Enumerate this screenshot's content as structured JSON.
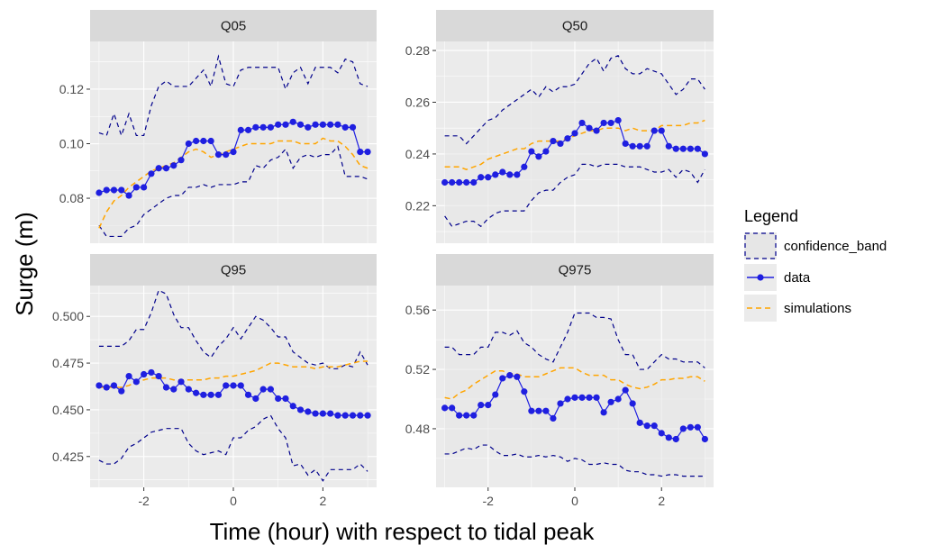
{
  "chart_data": {
    "type": "line",
    "xlabel": "Time (hour) with respect to tidal peak",
    "ylabel": "Surge (m)",
    "legend": {
      "title": "Legend",
      "position": "right",
      "entries": [
        "confidence_band",
        "data",
        "simulations"
      ]
    },
    "colors": {
      "confidence_band": "#00008b",
      "data": "#1f1fe0",
      "simulations": "#ffa500",
      "panel_bg": "#ebebeb",
      "strip_bg": "#d9d9d9",
      "grid": "#ffffff"
    },
    "grid": true,
    "x_ticks": [
      -2,
      0,
      2
    ],
    "x_tick_labels": [
      "-2",
      "0",
      "2"
    ],
    "xlim": [
      -3.2,
      3.2
    ],
    "panels": [
      {
        "title": "Q05",
        "ylim": [
          0.0635,
          0.1375
        ],
        "y_ticks": [
          0.08,
          0.1,
          0.12
        ],
        "y_tick_labels": [
          "0.08",
          "0.10",
          "0.12"
        ],
        "x": [
          -3.0,
          -2.833,
          -2.667,
          -2.5,
          -2.333,
          -2.167,
          -2.0,
          -1.833,
          -1.667,
          -1.5,
          -1.333,
          -1.167,
          -1.0,
          -0.833,
          -0.667,
          -0.5,
          -0.333,
          -0.167,
          0.0,
          0.167,
          0.333,
          0.5,
          0.667,
          0.833,
          1.0,
          1.167,
          1.333,
          1.5,
          1.667,
          1.833,
          2.0,
          2.167,
          2.333,
          2.5,
          2.667,
          2.833,
          3.0
        ],
        "series": [
          {
            "name": "data",
            "values": [
              0.082,
              0.083,
              0.083,
              0.083,
              0.081,
              0.084,
              0.084,
              0.089,
              0.091,
              0.091,
              0.092,
              0.094,
              0.1,
              0.101,
              0.101,
              0.101,
              0.096,
              0.096,
              0.097,
              0.105,
              0.105,
              0.106,
              0.106,
              0.106,
              0.107,
              0.107,
              0.108,
              0.107,
              0.106,
              0.107,
              0.107,
              0.107,
              0.107,
              0.106,
              0.106,
              0.097,
              0.097
            ]
          },
          {
            "name": "simulations",
            "values": [
              0.069,
              0.075,
              0.079,
              0.081,
              0.084,
              0.086,
              0.088,
              0.09,
              0.091,
              0.092,
              0.093,
              0.095,
              0.097,
              0.098,
              0.097,
              0.095,
              0.096,
              0.097,
              0.098,
              0.099,
              0.1,
              0.1,
              0.1,
              0.1,
              0.101,
              0.101,
              0.101,
              0.1,
              0.1,
              0.1,
              0.102,
              0.101,
              0.101,
              0.099,
              0.096,
              0.092,
              0.091
            ]
          },
          {
            "name": "upper",
            "values": [
              0.104,
              0.103,
              0.111,
              0.103,
              0.111,
              0.103,
              0.103,
              0.114,
              0.121,
              0.123,
              0.121,
              0.121,
              0.121,
              0.124,
              0.127,
              0.121,
              0.132,
              0.122,
              0.121,
              0.127,
              0.128,
              0.128,
              0.128,
              0.128,
              0.128,
              0.12,
              0.126,
              0.128,
              0.122,
              0.128,
              0.128,
              0.128,
              0.126,
              0.131,
              0.13,
              0.122,
              0.121
            ]
          },
          {
            "name": "lower",
            "values": [
              0.07,
              0.066,
              0.066,
              0.066,
              0.069,
              0.07,
              0.074,
              0.076,
              0.078,
              0.08,
              0.081,
              0.081,
              0.084,
              0.084,
              0.085,
              0.084,
              0.085,
              0.085,
              0.085,
              0.086,
              0.086,
              0.092,
              0.091,
              0.094,
              0.095,
              0.098,
              0.091,
              0.095,
              0.096,
              0.095,
              0.096,
              0.096,
              0.099,
              0.088,
              0.088,
              0.088,
              0.087
            ]
          }
        ]
      },
      {
        "title": "Q50",
        "ylim": [
          0.2055,
          0.2835
        ],
        "y_ticks": [
          0.22,
          0.24,
          0.26,
          0.28
        ],
        "y_tick_labels": [
          "0.22",
          "0.24",
          "0.26",
          "0.28"
        ],
        "x": [
          -3.0,
          -2.833,
          -2.667,
          -2.5,
          -2.333,
          -2.167,
          -2.0,
          -1.833,
          -1.667,
          -1.5,
          -1.333,
          -1.167,
          -1.0,
          -0.833,
          -0.667,
          -0.5,
          -0.333,
          -0.167,
          0.0,
          0.167,
          0.333,
          0.5,
          0.667,
          0.833,
          1.0,
          1.167,
          1.333,
          1.5,
          1.667,
          1.833,
          2.0,
          2.167,
          2.333,
          2.5,
          2.667,
          2.833,
          3.0
        ],
        "series": [
          {
            "name": "data",
            "values": [
              0.229,
              0.229,
              0.229,
              0.229,
              0.229,
              0.231,
              0.231,
              0.232,
              0.233,
              0.232,
              0.232,
              0.235,
              0.241,
              0.239,
              0.241,
              0.245,
              0.244,
              0.246,
              0.248,
              0.252,
              0.25,
              0.249,
              0.252,
              0.252,
              0.253,
              0.244,
              0.243,
              0.243,
              0.243,
              0.249,
              0.249,
              0.243,
              0.242,
              0.242,
              0.242,
              0.242,
              0.24
            ]
          },
          {
            "name": "simulations",
            "values": [
              0.235,
              0.235,
              0.235,
              0.234,
              0.235,
              0.236,
              0.238,
              0.239,
              0.24,
              0.241,
              0.242,
              0.242,
              0.244,
              0.245,
              0.245,
              0.245,
              0.245,
              0.246,
              0.247,
              0.248,
              0.249,
              0.249,
              0.25,
              0.25,
              0.25,
              0.249,
              0.25,
              0.249,
              0.249,
              0.249,
              0.251,
              0.251,
              0.251,
              0.251,
              0.252,
              0.252,
              0.253
            ]
          },
          {
            "name": "upper",
            "values": [
              0.247,
              0.247,
              0.247,
              0.244,
              0.247,
              0.25,
              0.253,
              0.254,
              0.257,
              0.259,
              0.261,
              0.263,
              0.265,
              0.262,
              0.266,
              0.264,
              0.266,
              0.266,
              0.267,
              0.271,
              0.275,
              0.277,
              0.272,
              0.277,
              0.278,
              0.273,
              0.271,
              0.271,
              0.273,
              0.272,
              0.271,
              0.267,
              0.263,
              0.265,
              0.269,
              0.269,
              0.265
            ]
          },
          {
            "name": "lower",
            "values": [
              0.216,
              0.212,
              0.213,
              0.214,
              0.214,
              0.212,
              0.215,
              0.217,
              0.218,
              0.218,
              0.218,
              0.218,
              0.222,
              0.225,
              0.226,
              0.226,
              0.229,
              0.231,
              0.232,
              0.236,
              0.236,
              0.235,
              0.236,
              0.236,
              0.236,
              0.235,
              0.235,
              0.235,
              0.234,
              0.233,
              0.233,
              0.234,
              0.231,
              0.234,
              0.233,
              0.229,
              0.234
            ]
          }
        ]
      },
      {
        "title": "Q95",
        "ylim": [
          0.4085,
          0.5165
        ],
        "y_ticks": [
          0.425,
          0.45,
          0.475,
          0.5
        ],
        "y_tick_labels": [
          "0.425",
          "0.450",
          "0.475",
          "0.500"
        ],
        "x": [
          -3.0,
          -2.833,
          -2.667,
          -2.5,
          -2.333,
          -2.167,
          -2.0,
          -1.833,
          -1.667,
          -1.5,
          -1.333,
          -1.167,
          -1.0,
          -0.833,
          -0.667,
          -0.5,
          -0.333,
          -0.167,
          0.0,
          0.167,
          0.333,
          0.5,
          0.667,
          0.833,
          1.0,
          1.167,
          1.333,
          1.5,
          1.667,
          1.833,
          2.0,
          2.167,
          2.333,
          2.5,
          2.667,
          2.833,
          3.0
        ],
        "series": [
          {
            "name": "data",
            "values": [
              0.463,
              0.462,
              0.463,
              0.46,
              0.468,
              0.465,
              0.469,
              0.47,
              0.468,
              0.462,
              0.461,
              0.465,
              0.461,
              0.459,
              0.458,
              0.458,
              0.458,
              0.463,
              0.463,
              0.463,
              0.458,
              0.456,
              0.461,
              0.461,
              0.456,
              0.456,
              0.452,
              0.45,
              0.449,
              0.448,
              0.448,
              0.448,
              0.447,
              0.447,
              0.447,
              0.447,
              0.447
            ]
          },
          {
            "name": "simulations",
            "values": [
              0.462,
              0.462,
              0.462,
              0.462,
              0.463,
              0.465,
              0.466,
              0.467,
              0.467,
              0.467,
              0.466,
              0.466,
              0.466,
              0.466,
              0.466,
              0.467,
              0.467,
              0.468,
              0.468,
              0.469,
              0.47,
              0.471,
              0.473,
              0.475,
              0.475,
              0.474,
              0.473,
              0.473,
              0.473,
              0.472,
              0.473,
              0.473,
              0.473,
              0.474,
              0.475,
              0.476,
              0.476
            ]
          },
          {
            "name": "upper",
            "values": [
              0.484,
              0.484,
              0.484,
              0.484,
              0.487,
              0.493,
              0.493,
              0.502,
              0.514,
              0.512,
              0.501,
              0.494,
              0.494,
              0.487,
              0.481,
              0.478,
              0.484,
              0.488,
              0.494,
              0.488,
              0.494,
              0.5,
              0.498,
              0.494,
              0.489,
              0.489,
              0.481,
              0.478,
              0.475,
              0.474,
              0.475,
              0.472,
              0.472,
              0.474,
              0.473,
              0.481,
              0.474
            ]
          },
          {
            "name": "lower",
            "values": [
              0.423,
              0.421,
              0.421,
              0.424,
              0.43,
              0.432,
              0.435,
              0.438,
              0.439,
              0.44,
              0.44,
              0.44,
              0.432,
              0.428,
              0.426,
              0.427,
              0.428,
              0.426,
              0.435,
              0.435,
              0.439,
              0.441,
              0.445,
              0.447,
              0.44,
              0.435,
              0.42,
              0.421,
              0.415,
              0.418,
              0.412,
              0.418,
              0.418,
              0.418,
              0.418,
              0.421,
              0.417
            ]
          }
        ]
      },
      {
        "title": "Q975",
        "ylim": [
          0.4405,
          0.5765
        ],
        "y_ticks": [
          0.48,
          0.52,
          0.56
        ],
        "y_tick_labels": [
          "0.48",
          "0.52",
          "0.56"
        ],
        "x": [
          -3.0,
          -2.833,
          -2.667,
          -2.5,
          -2.333,
          -2.167,
          -2.0,
          -1.833,
          -1.667,
          -1.5,
          -1.333,
          -1.167,
          -1.0,
          -0.833,
          -0.667,
          -0.5,
          -0.333,
          -0.167,
          0.0,
          0.167,
          0.333,
          0.5,
          0.667,
          0.833,
          1.0,
          1.167,
          1.333,
          1.5,
          1.667,
          1.833,
          2.0,
          2.167,
          2.333,
          2.5,
          2.667,
          2.833,
          3.0
        ],
        "series": [
          {
            "name": "data",
            "values": [
              0.494,
              0.494,
              0.489,
              0.489,
              0.489,
              0.496,
              0.496,
              0.503,
              0.514,
              0.516,
              0.515,
              0.505,
              0.492,
              0.492,
              0.492,
              0.487,
              0.497,
              0.5,
              0.501,
              0.501,
              0.501,
              0.501,
              0.491,
              0.498,
              0.5,
              0.506,
              0.497,
              0.484,
              0.482,
              0.482,
              0.477,
              0.474,
              0.473,
              0.48,
              0.481,
              0.481,
              0.473
            ]
          },
          {
            "name": "simulations",
            "values": [
              0.501,
              0.5,
              0.504,
              0.506,
              0.51,
              0.513,
              0.516,
              0.519,
              0.519,
              0.517,
              0.517,
              0.515,
              0.515,
              0.515,
              0.517,
              0.519,
              0.521,
              0.521,
              0.521,
              0.518,
              0.516,
              0.516,
              0.516,
              0.513,
              0.513,
              0.51,
              0.508,
              0.507,
              0.508,
              0.51,
              0.513,
              0.513,
              0.514,
              0.514,
              0.515,
              0.515,
              0.512
            ]
          },
          {
            "name": "upper",
            "values": [
              0.535,
              0.535,
              0.53,
              0.53,
              0.53,
              0.535,
              0.535,
              0.545,
              0.545,
              0.543,
              0.546,
              0.538,
              0.535,
              0.53,
              0.527,
              0.525,
              0.535,
              0.545,
              0.558,
              0.558,
              0.558,
              0.555,
              0.555,
              0.554,
              0.54,
              0.53,
              0.53,
              0.52,
              0.52,
              0.525,
              0.53,
              0.527,
              0.527,
              0.525,
              0.525,
              0.525,
              0.521
            ]
          },
          {
            "name": "lower",
            "values": [
              0.463,
              0.463,
              0.465,
              0.467,
              0.466,
              0.469,
              0.469,
              0.465,
              0.462,
              0.462,
              0.463,
              0.461,
              0.461,
              0.462,
              0.461,
              0.462,
              0.461,
              0.458,
              0.46,
              0.459,
              0.456,
              0.456,
              0.457,
              0.456,
              0.456,
              0.452,
              0.451,
              0.451,
              0.449,
              0.449,
              0.448,
              0.449,
              0.449,
              0.448,
              0.448,
              0.448,
              0.448
            ]
          }
        ]
      }
    ]
  }
}
